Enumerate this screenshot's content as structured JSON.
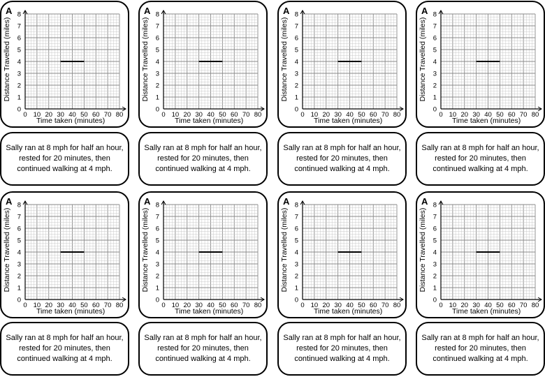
{
  "card_label": "A",
  "description": "Sally ran at 8 mph for half an hour, rested for 20 minutes, then continued walking at 4 mph.",
  "chart_data": {
    "type": "line",
    "title": "",
    "xlabel": "Time taken (minutes)",
    "ylabel": "Distance Travelled (miles)",
    "x_ticks": [
      "0",
      "10",
      "20",
      "30",
      "40",
      "50",
      "60",
      "70",
      "80"
    ],
    "y_ticks": [
      "0",
      "1",
      "2",
      "3",
      "4",
      "5",
      "6",
      "7",
      "8"
    ],
    "xlim": [
      0,
      80
    ],
    "ylim": [
      0,
      8
    ],
    "grid": true,
    "series": [
      {
        "name": "rest segment",
        "x": [
          30,
          50
        ],
        "y": [
          4,
          4
        ]
      }
    ]
  },
  "colors": {
    "line": "#000000",
    "grid_major": "#8a8a8a",
    "grid_minor": "#c8c8c8"
  }
}
